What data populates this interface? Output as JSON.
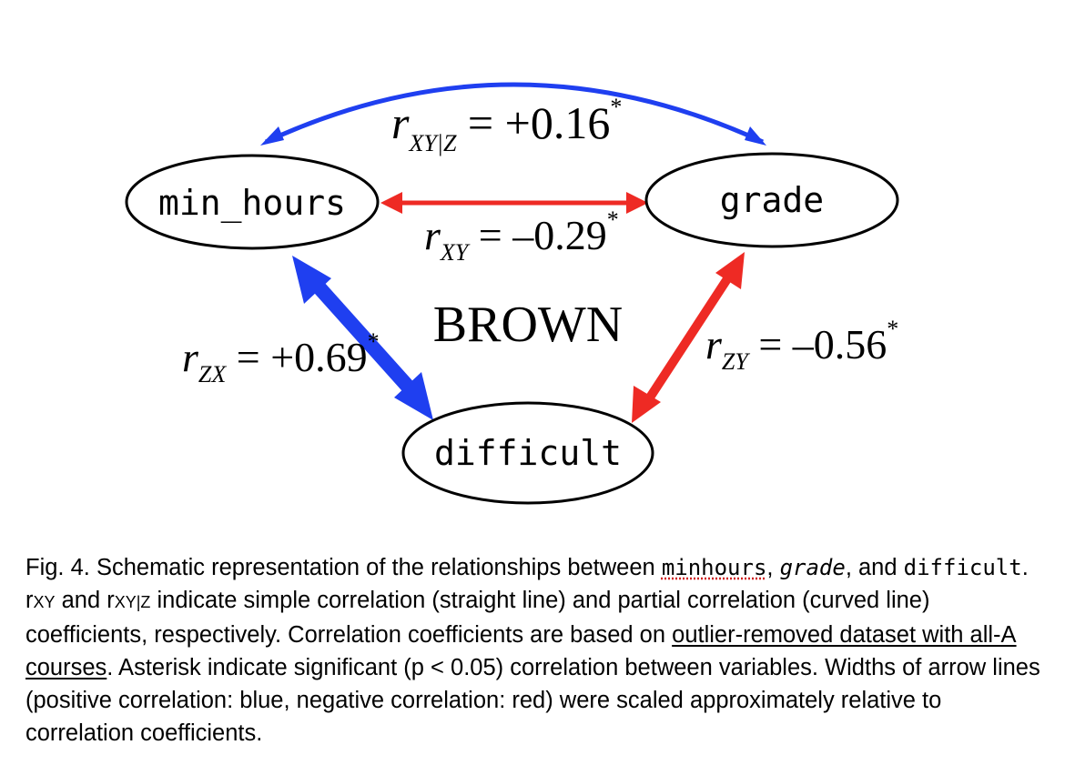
{
  "nodes": {
    "min_hours": "min_hours",
    "grade": "grade",
    "difficult": "difficult"
  },
  "group_title": "BROWN",
  "correlations": {
    "partial_xy_z": {
      "r": "r",
      "sub": "XY|Z",
      "eq": " = +0.16",
      "star": "*"
    },
    "xy": {
      "r": "r",
      "sub": "XY",
      "eq": " = –0.29",
      "star": "*"
    },
    "zx": {
      "r": "r",
      "sub": "ZX",
      "eq": " = +0.69",
      "star": "*"
    },
    "zy": {
      "r": "r",
      "sub": "ZY",
      "eq": " = –0.56",
      "star": "*"
    }
  },
  "colors": {
    "positive": "#1f3ff0",
    "negative": "#ee2a24"
  },
  "caption": {
    "lead": "Fig. 4. Schematic representation of the relationships between ",
    "var1": "minhours",
    "sep1": ", ",
    "var2": "grade",
    "sep2": ", and ",
    "var3": "difficult",
    "part2": ". r",
    "sub1": "XY",
    "part3": " and r",
    "sub2": "XY|Z",
    "part4": " indicate simple correlation (straight line) and partial correlation (curved line) coefficients, respectively. Correlation coefficients are based on ",
    "link": "outlier-removed dataset with all-A courses",
    "part5": ". Asterisk indicate significant (p < 0.05) correlation between variables. Widths of arrow lines (positive correlation: blue, negative correlation: red) were scaled approximately relative to correlation coefficients."
  }
}
